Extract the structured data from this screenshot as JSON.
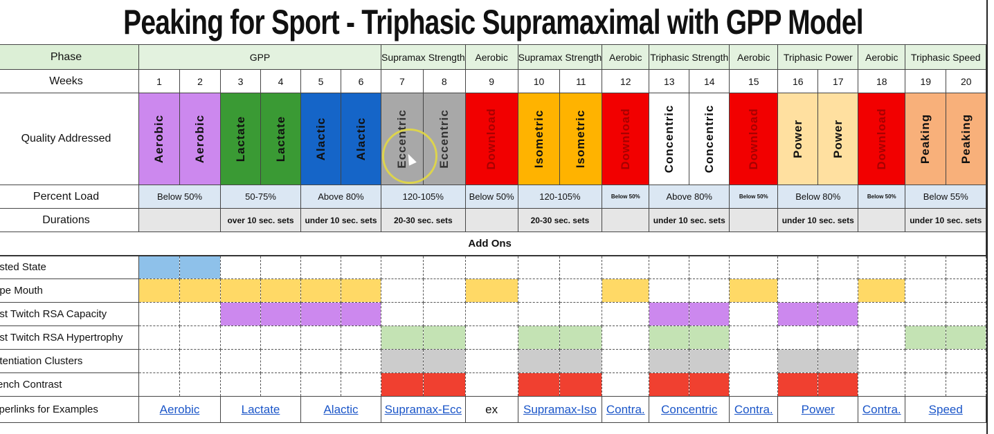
{
  "title": "Peaking for Sport - Triphasic Supramaximal with GPP Model",
  "labels": {
    "phase": "Phase",
    "weeks": "Weeks",
    "quality": "Quality Addressed",
    "load": "Percent Load",
    "durations": "Durations",
    "addons": "Add Ons"
  },
  "phases": [
    {
      "label": "GPP",
      "span": 6
    },
    {
      "label": "Supramax Strength",
      "span": 2
    },
    {
      "label": "Aerobic",
      "span": 1
    },
    {
      "label": "Supramax Strength",
      "span": 2
    },
    {
      "label": "Aerobic",
      "span": 1
    },
    {
      "label": "Triphasic Strength",
      "span": 2
    },
    {
      "label": "Aerobic",
      "span": 1
    },
    {
      "label": "Triphasic Power",
      "span": 2
    },
    {
      "label": "Aerobic",
      "span": 1
    },
    {
      "label": "Triphasic Speed",
      "span": 2
    }
  ],
  "weeks": [
    "1",
    "2",
    "3",
    "4",
    "5",
    "6",
    "7",
    "8",
    "9",
    "10",
    "11",
    "12",
    "13",
    "14",
    "15",
    "16",
    "17",
    "18",
    "19",
    "20"
  ],
  "qualities": [
    {
      "label": "Aerobic",
      "color": "#cc88ee",
      "text": "#111"
    },
    {
      "label": "Aerobic",
      "color": "#cc88ee",
      "text": "#111"
    },
    {
      "label": "Lactate",
      "color": "#3a9a34",
      "text": "#111"
    },
    {
      "label": "Lactate",
      "color": "#3a9a34",
      "text": "#111"
    },
    {
      "label": "Alactic",
      "color": "#1565c8",
      "text": "#111"
    },
    {
      "label": "Alactic",
      "color": "#1565c8",
      "text": "#111"
    },
    {
      "label": "Eccentric",
      "color": "#a8a8a8",
      "text": "#333"
    },
    {
      "label": "Eccentric",
      "color": "#a8a8a8",
      "text": "#333"
    },
    {
      "label": "Download",
      "color": "#f20000",
      "text": "#a80000"
    },
    {
      "label": "Isometric",
      "color": "#ffb300",
      "text": "#111"
    },
    {
      "label": "Isometric",
      "color": "#ffb300",
      "text": "#111"
    },
    {
      "label": "Download",
      "color": "#f20000",
      "text": "#a80000"
    },
    {
      "label": "Concentric",
      "color": "#ffffff",
      "text": "#111"
    },
    {
      "label": "Concentric",
      "color": "#ffffff",
      "text": "#111"
    },
    {
      "label": "Download",
      "color": "#f20000",
      "text": "#a80000"
    },
    {
      "label": "Power",
      "color": "#ffe0a0",
      "text": "#111"
    },
    {
      "label": "Power",
      "color": "#ffe0a0",
      "text": "#111"
    },
    {
      "label": "Download",
      "color": "#f20000",
      "text": "#a80000"
    },
    {
      "label": "Peaking",
      "color": "#f8b07a",
      "text": "#111"
    },
    {
      "label": "Peaking",
      "color": "#f8b07a",
      "text": "#111"
    }
  ],
  "loads": [
    {
      "label": "Below 50%",
      "span": 2,
      "tiny": false
    },
    {
      "label": "50-75%",
      "span": 2,
      "tiny": false
    },
    {
      "label": "Above 80%",
      "span": 2,
      "tiny": false
    },
    {
      "label": "120-105%",
      "span": 2,
      "tiny": false
    },
    {
      "label": "Below 50%",
      "span": 1,
      "tiny": false
    },
    {
      "label": "120-105%",
      "span": 2,
      "tiny": false
    },
    {
      "label": "Below 50%",
      "span": 1,
      "tiny": true
    },
    {
      "label": "Above 80%",
      "span": 2,
      "tiny": false
    },
    {
      "label": "Below 50%",
      "span": 1,
      "tiny": true
    },
    {
      "label": "Below 80%",
      "span": 2,
      "tiny": false
    },
    {
      "label": "Below 50%",
      "span": 1,
      "tiny": true
    },
    {
      "label": "Below 55%",
      "span": 2,
      "tiny": false
    }
  ],
  "durations": [
    {
      "label": "",
      "span": 2
    },
    {
      "label": "over 10 sec. sets",
      "span": 2
    },
    {
      "label": "under 10 sec. sets",
      "span": 2
    },
    {
      "label": "20-30 sec. sets",
      "span": 2
    },
    {
      "label": "",
      "span": 1
    },
    {
      "label": "20-30 sec. sets",
      "span": 2
    },
    {
      "label": "",
      "span": 1
    },
    {
      "label": "under 10 sec. sets",
      "span": 2
    },
    {
      "label": "",
      "span": 1
    },
    {
      "label": "under 10 sec. sets",
      "span": 2
    },
    {
      "label": "",
      "span": 1
    },
    {
      "label": "under 10 sec. sets",
      "span": 2
    }
  ],
  "addon_rows": [
    {
      "label": "asted State",
      "color": "#8ec1ea",
      "weeks": [
        1,
        2
      ]
    },
    {
      "label": "ape Mouth",
      "color": "#ffd966",
      "weeks": [
        1,
        2,
        3,
        4,
        5,
        6,
        9,
        12,
        15,
        18
      ]
    },
    {
      "label": "ast Twitch RSA Capacity",
      "color": "#cc88ee",
      "weeks": [
        3,
        4,
        5,
        6,
        13,
        14,
        16,
        17
      ]
    },
    {
      "label": "ast Twitch RSA Hypertrophy",
      "color": "#c4e3b4",
      "weeks": [
        7,
        8,
        10,
        11,
        13,
        14,
        19,
        20
      ]
    },
    {
      "label": "otentiation Clusters",
      "color": "#cccccc",
      "weeks": [
        7,
        8,
        10,
        11,
        13,
        14,
        16,
        17
      ]
    },
    {
      "label": "rench Contrast",
      "color": "#f04030",
      "weeks": [
        7,
        8,
        10,
        11,
        13,
        14,
        16,
        17
      ]
    }
  ],
  "links_label": "yperlinks for Examples",
  "links": [
    {
      "label": "Aerobic",
      "span": 2,
      "link": true
    },
    {
      "label": "Lactate",
      "span": 2,
      "link": true
    },
    {
      "label": "Alactic",
      "span": 2,
      "link": true
    },
    {
      "label": "Supramax-Ecc",
      "span": 2,
      "link": true
    },
    {
      "label": "ex",
      "span": 1,
      "link": false
    },
    {
      "label": "Supramax-Iso",
      "span": 2,
      "link": true
    },
    {
      "label": "Contra.",
      "span": 1,
      "link": true
    },
    {
      "label": "Concentric",
      "span": 2,
      "link": true
    },
    {
      "label": "Contra.",
      "span": 1,
      "link": true
    },
    {
      "label": "Power",
      "span": 2,
      "link": true
    },
    {
      "label": "Contra.",
      "span": 1,
      "link": true
    },
    {
      "label": "Speed",
      "span": 2,
      "link": true
    }
  ]
}
